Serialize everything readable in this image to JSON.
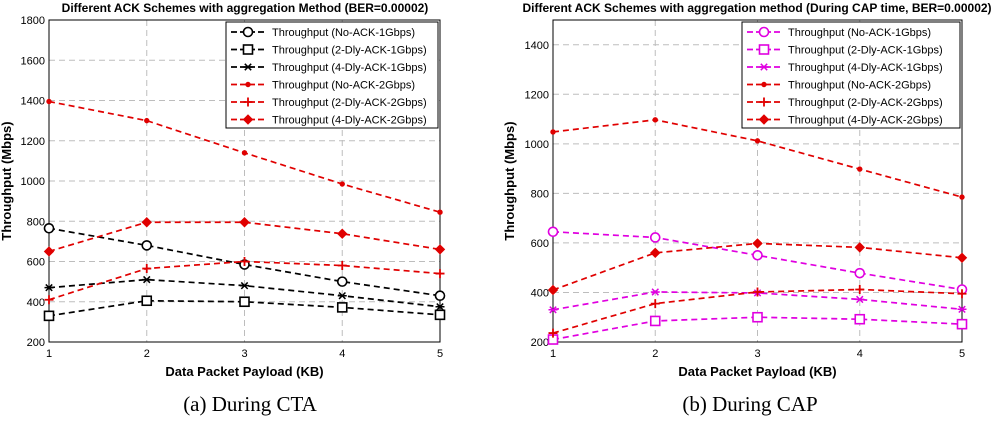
{
  "figure": {
    "caption_a": "(a) During CTA",
    "caption_b": "(b) During CAP"
  },
  "chart_data": [
    {
      "type": "line",
      "title": "Different ACK Schemes with aggregation Method (BER=0.00002)",
      "xlabel": "Data Packet Payload (KB)",
      "ylabel": "Throughput (Mbps)",
      "x": [
        1,
        2,
        3,
        4,
        5
      ],
      "xlim": [
        1,
        5
      ],
      "ylim": [
        200,
        1800
      ],
      "yticks": [
        200,
        400,
        600,
        800,
        1000,
        1200,
        1400,
        1600,
        1800
      ],
      "grid": true,
      "legend_position": "top-right",
      "series": [
        {
          "name": "Throughput (No-ACK-1Gbps)",
          "color": "#000000",
          "marker": "circle",
          "values": [
            765,
            680,
            585,
            500,
            430
          ]
        },
        {
          "name": "Throughput (2-Dly-ACK-1Gbps)",
          "color": "#000000",
          "marker": "square",
          "values": [
            330,
            405,
            400,
            372,
            335
          ]
        },
        {
          "name": "Throughput (4-Dly-ACK-1Gbps)",
          "color": "#000000",
          "marker": "star",
          "values": [
            470,
            510,
            480,
            430,
            375
          ]
        },
        {
          "name": "Throughput (No-ACK-2Gbps)",
          "color": "#e00000",
          "marker": "dot",
          "values": [
            1395,
            1300,
            1140,
            985,
            845
          ]
        },
        {
          "name": "Throughput (2-Dly-ACK-2Gbps)",
          "color": "#e00000",
          "marker": "plus",
          "values": [
            410,
            565,
            600,
            580,
            540
          ]
        },
        {
          "name": "Throughput (4-Dly-ACK-2Gbps)",
          "color": "#e00000",
          "marker": "diamond",
          "values": [
            650,
            795,
            795,
            738,
            660
          ]
        }
      ]
    },
    {
      "type": "line",
      "title": "Different ACK Schemes with aggregation method (During CAP time, BER=0.00002)",
      "xlabel": "Data Packet Payload (KB)",
      "ylabel": "Throughput (Mbps)",
      "x": [
        1,
        2,
        3,
        4,
        5
      ],
      "xlim": [
        1,
        5
      ],
      "ylim": [
        200,
        1500
      ],
      "yticks": [
        200,
        400,
        600,
        800,
        1000,
        1200,
        1400
      ],
      "grid": true,
      "legend_position": "top-right",
      "series": [
        {
          "name": "Throughput (No-ACK-1Gbps)",
          "color": "#e000e0",
          "marker": "circle",
          "values": [
            645,
            622,
            550,
            478,
            412
          ]
        },
        {
          "name": "Throughput (2-Dly-ACK-1Gbps)",
          "color": "#e000e0",
          "marker": "square",
          "values": [
            210,
            285,
            300,
            292,
            272
          ]
        },
        {
          "name": "Throughput (4-Dly-ACK-1Gbps)",
          "color": "#e000e0",
          "marker": "star",
          "values": [
            330,
            402,
            398,
            372,
            332
          ]
        },
        {
          "name": "Throughput (No-ACK-2Gbps)",
          "color": "#e00000",
          "marker": "dot",
          "values": [
            1048,
            1097,
            1012,
            898,
            785
          ]
        },
        {
          "name": "Throughput (2-Dly-ACK-2Gbps)",
          "color": "#e00000",
          "marker": "plus",
          "values": [
            236,
            355,
            402,
            412,
            395
          ]
        },
        {
          "name": "Throughput (4-Dly-ACK-2Gbps)",
          "color": "#e00000",
          "marker": "diamond",
          "values": [
            410,
            560,
            598,
            582,
            540
          ]
        }
      ]
    }
  ]
}
